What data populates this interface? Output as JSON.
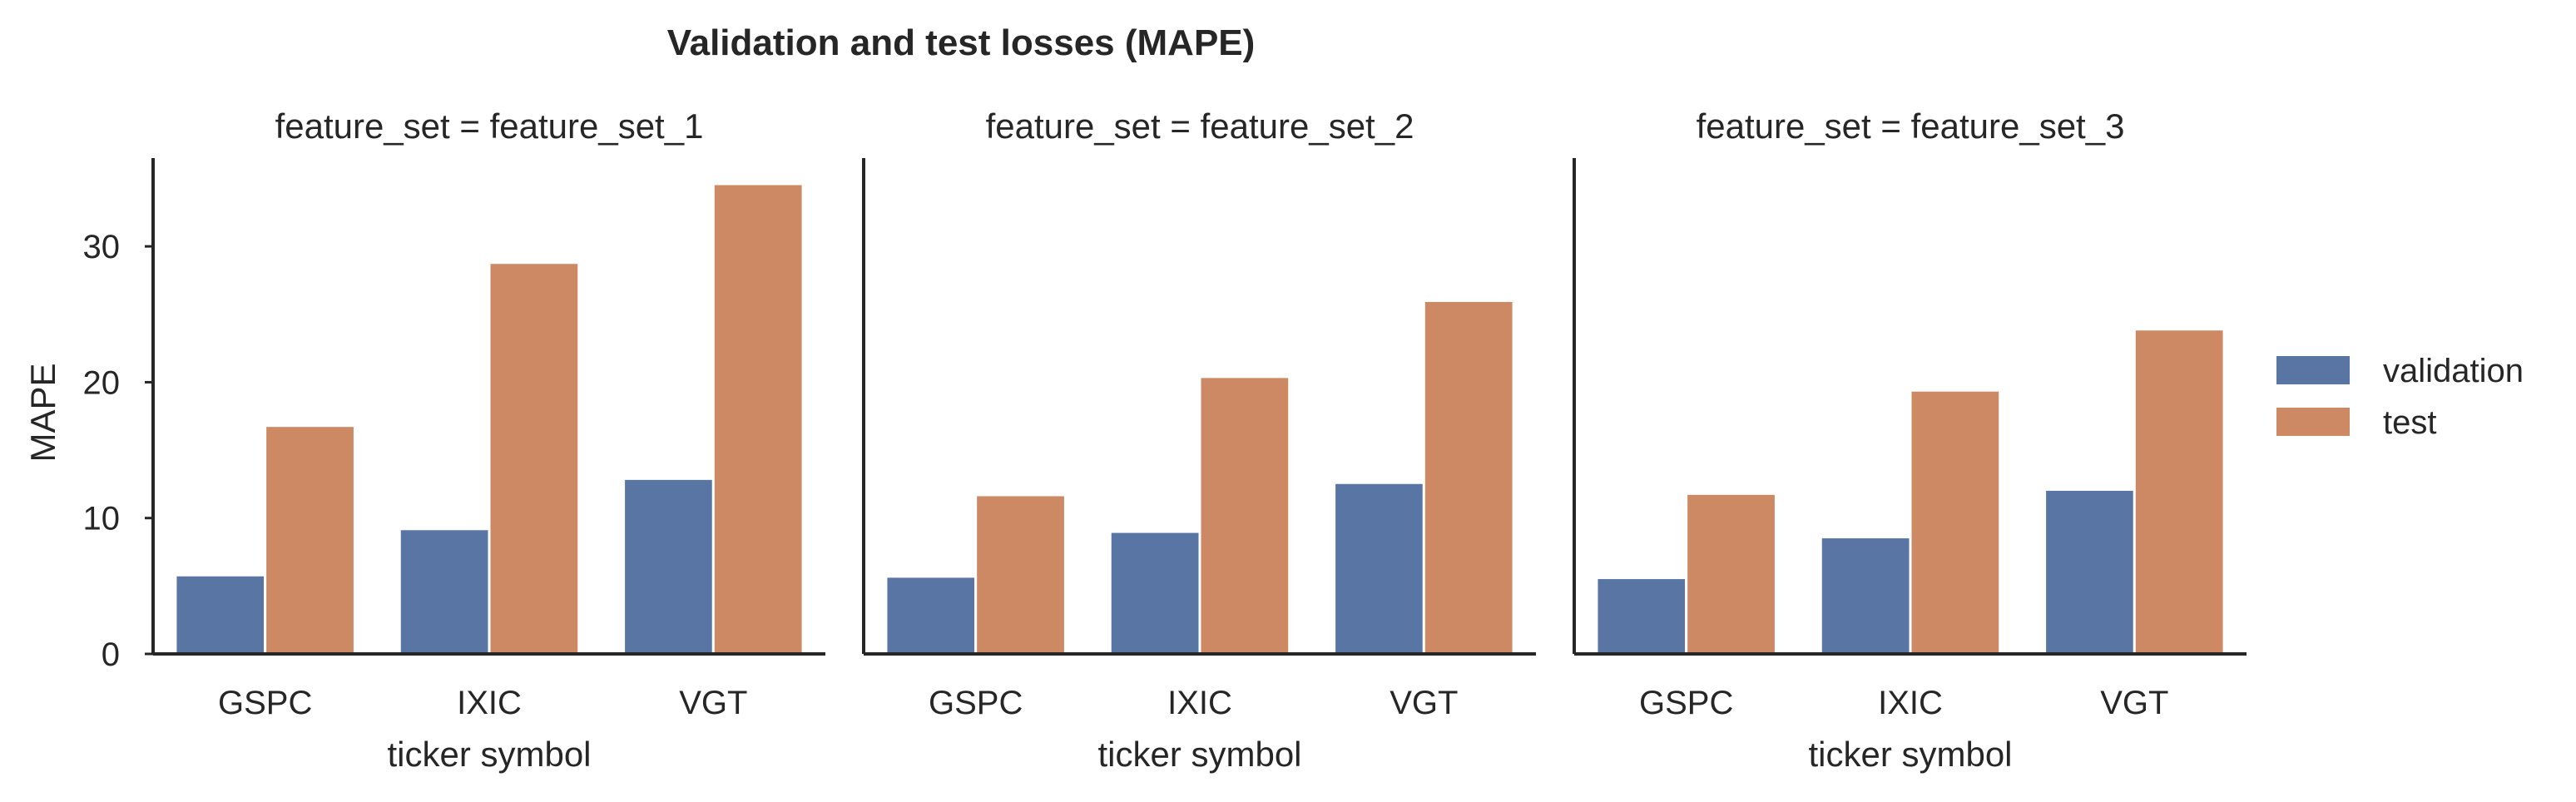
{
  "chart_data": {
    "type": "bar",
    "title": "Validation and test losses (MAPE)",
    "ylabel": "MAPE",
    "ylim": [
      0,
      36.5
    ],
    "yticks": [
      0,
      10,
      20,
      30
    ],
    "grid": false,
    "legend_position": "right",
    "colors": {
      "validation": "#5875a4",
      "test": "#cc8963"
    },
    "legend": [
      {
        "name": "validation",
        "color": "#5875a4"
      },
      {
        "name": "test",
        "color": "#cc8963"
      }
    ],
    "panels": [
      {
        "title": "feature_set = feature_set_1",
        "xlabel": "ticker symbol",
        "categories": [
          "GSPC",
          "IXIC",
          "VGT"
        ],
        "series": [
          {
            "name": "validation",
            "values": [
              5.8,
              9.2,
              12.9
            ]
          },
          {
            "name": "test",
            "values": [
              16.8,
              28.8,
              34.6
            ]
          }
        ]
      },
      {
        "title": "feature_set = feature_set_2",
        "xlabel": "ticker symbol",
        "categories": [
          "GSPC",
          "IXIC",
          "VGT"
        ],
        "series": [
          {
            "name": "validation",
            "values": [
              5.7,
              9.0,
              12.6
            ]
          },
          {
            "name": "test",
            "values": [
              11.7,
              20.4,
              26.0
            ]
          }
        ]
      },
      {
        "title": "feature_set = feature_set_3",
        "xlabel": "ticker symbol",
        "categories": [
          "GSPC",
          "IXIC",
          "VGT"
        ],
        "series": [
          {
            "name": "validation",
            "values": [
              5.6,
              8.6,
              12.1
            ]
          },
          {
            "name": "test",
            "values": [
              11.8,
              19.4,
              23.9
            ]
          }
        ]
      }
    ]
  }
}
